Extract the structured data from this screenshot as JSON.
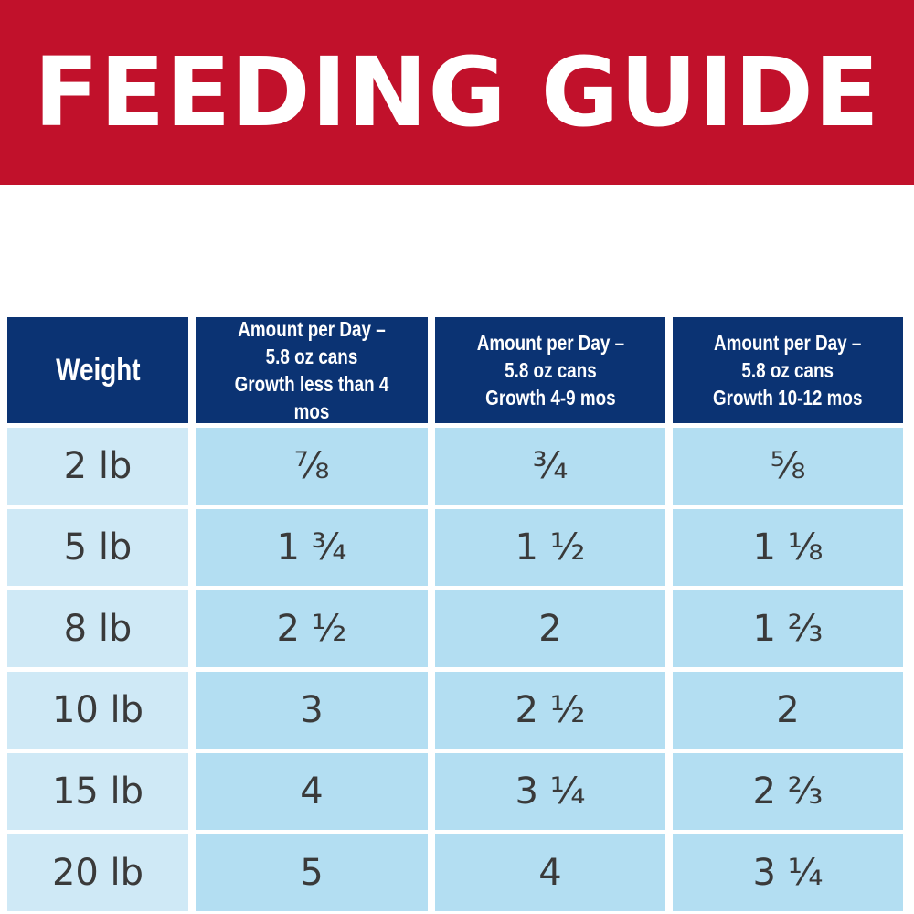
{
  "banner": {
    "title": "FEEDING GUIDE",
    "background": "#c1112b"
  },
  "table": {
    "header_color": "#0b3373",
    "columns": [
      {
        "label": "Weight"
      },
      {
        "label": "Amount per Day –\n5.8 oz cans\nGrowth less than 4 mos"
      },
      {
        "label": "Amount per Day –\n5.8 oz cans\nGrowth 4-9 mos"
      },
      {
        "label": "Amount per Day –\n5.8 oz cans\nGrowth 10-12 mos"
      }
    ],
    "rows": [
      {
        "weight": "2 lb",
        "values": [
          "⁷⁄₈",
          "³⁄₄",
          "⁵⁄₈"
        ]
      },
      {
        "weight": "5 lb",
        "values": [
          "1 ³⁄₄",
          "1 ¹⁄₂",
          "1 ¹⁄₈"
        ]
      },
      {
        "weight": "8 lb",
        "values": [
          "2 ¹⁄₂",
          "2",
          "1 ²⁄₃"
        ]
      },
      {
        "weight": "10 lb",
        "values": [
          "3",
          "2 ¹⁄₂",
          "2"
        ]
      },
      {
        "weight": "15 lb",
        "values": [
          "4",
          "3 ¹⁄₄",
          "2 ²⁄₃"
        ]
      },
      {
        "weight": "20 lb",
        "values": [
          "5",
          "4",
          "3 ¹⁄₄"
        ]
      }
    ]
  }
}
